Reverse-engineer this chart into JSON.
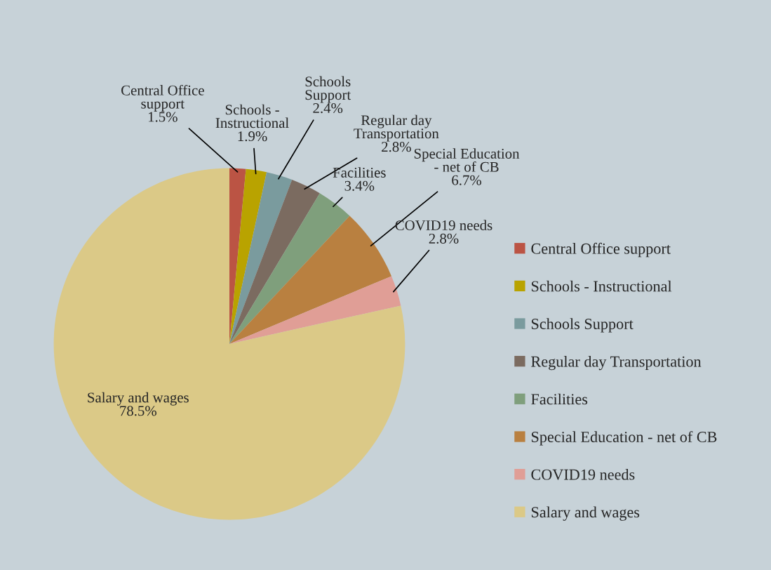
{
  "chart_data": {
    "type": "pie",
    "categories": [
      "Central Office support",
      "Schools - Instructional",
      "Schools Support",
      "Regular day Transportation",
      "Facilities",
      "Special Education - net of CB",
      "COVID19 needs",
      "Salary and wages"
    ],
    "values": [
      1.5,
      1.9,
      2.4,
      2.8,
      3.4,
      6.7,
      2.8,
      78.5
    ],
    "value_labels": [
      "1.5%",
      "1.9%",
      "2.4%",
      "2.8%",
      "3.4%",
      "6.7%",
      "2.8%",
      "78.5%"
    ],
    "colors": [
      "#bb5444",
      "#b9a300",
      "#7a9b9e",
      "#7b6b60",
      "#7f9f7c",
      "#b98040",
      "#e09e96",
      "#dbc987"
    ],
    "legend": "right"
  }
}
